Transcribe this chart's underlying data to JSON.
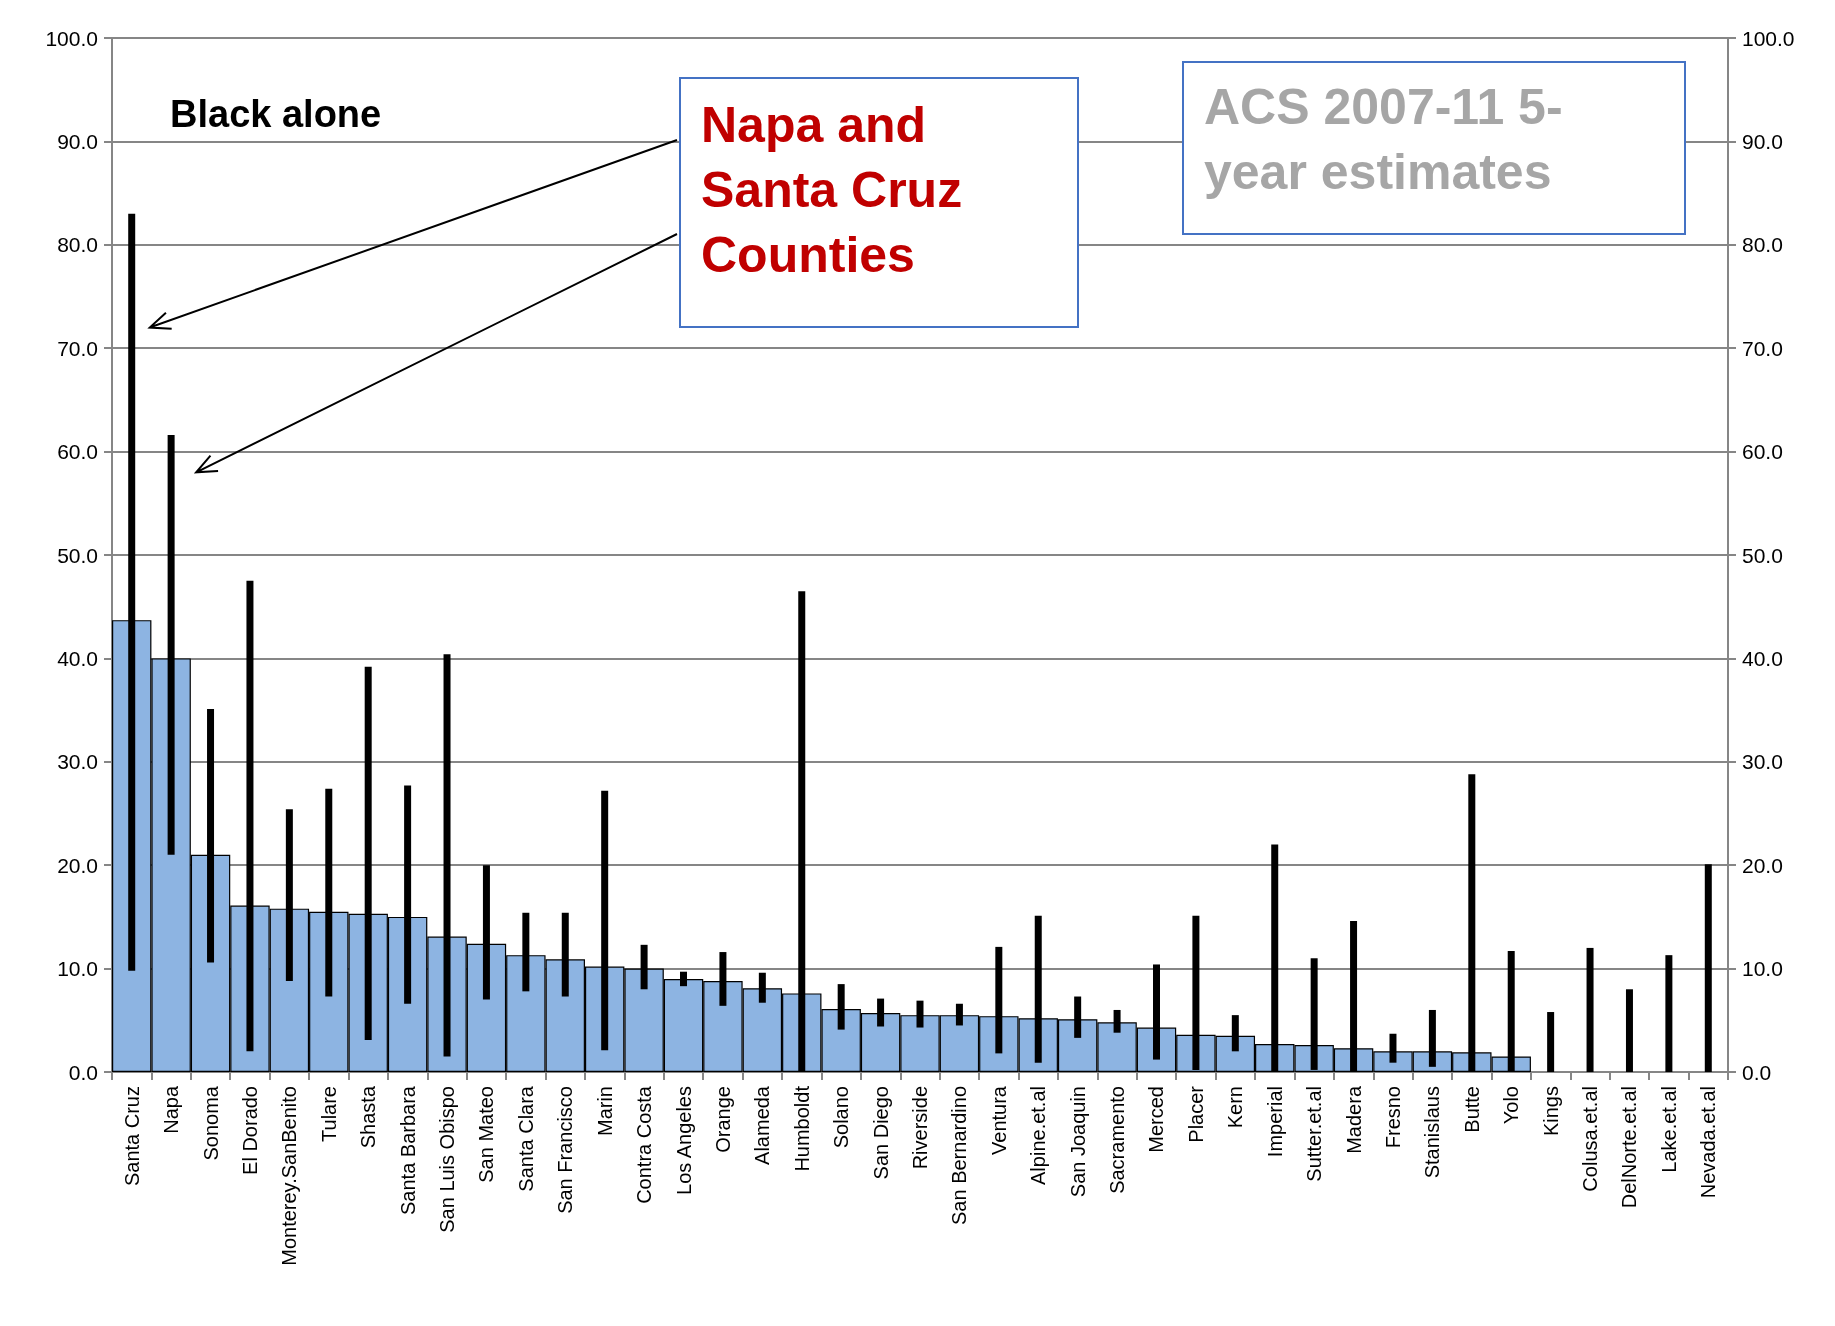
{
  "chart_data": {
    "type": "bar",
    "annotations": [
      "Black alone",
      "Napa and Santa Cruz Counties",
      "ACS 2007-11 5-year estimates"
    ],
    "categories": [
      "Santa Cruz",
      "Napa",
      "Sonoma",
      "El Dorado",
      "Monterey.SanBenito",
      "Tulare",
      "Shasta",
      "Santa Barbara",
      "San Luis Obispo",
      "San Mateo",
      "Santa Clara",
      "San Francisco",
      "Marin",
      "Contra Costa",
      "Los Angeles",
      "Orange",
      "Alameda",
      "Humboldt",
      "Solano",
      "San Diego",
      "Riverside",
      "San Bernardino",
      "Ventura",
      "Alpine.et.al",
      "San Joaquin",
      "Sacramento",
      "Merced",
      "Placer",
      "Kern",
      "Imperial",
      "Sutter.et.al",
      "Madera",
      "Fresno",
      "Stanislaus",
      "Butte",
      "Yolo",
      "Kings",
      "Colusa.et.al",
      "DelNorte.et.al",
      "Lake.et.al",
      "Nevada.et.al"
    ],
    "values": [
      43.7,
      40.0,
      21.0,
      16.1,
      15.8,
      15.5,
      15.3,
      15.0,
      13.1,
      12.4,
      11.3,
      10.9,
      10.2,
      10.0,
      9.0,
      8.8,
      8.1,
      7.6,
      6.1,
      5.7,
      5.5,
      5.5,
      5.4,
      5.2,
      5.1,
      4.8,
      4.3,
      3.6,
      3.5,
      2.7,
      2.6,
      2.3,
      2.0,
      2.0,
      1.9,
      1.5,
      0,
      0,
      0,
      0,
      0
    ],
    "errors": [
      [
        9.8,
        83.0
      ],
      [
        21.0,
        61.6
      ],
      [
        10.6,
        35.1
      ],
      [
        2.0,
        47.5
      ],
      [
        8.8,
        25.4
      ],
      [
        7.3,
        27.4
      ],
      [
        3.1,
        39.2
      ],
      [
        6.6,
        27.7
      ],
      [
        1.5,
        40.4
      ],
      [
        7.0,
        20.0
      ],
      [
        7.8,
        15.4
      ],
      [
        7.3,
        15.4
      ],
      [
        2.1,
        27.2
      ],
      [
        8.0,
        12.3
      ],
      [
        8.3,
        9.7
      ],
      [
        6.4,
        11.6
      ],
      [
        6.7,
        9.6
      ],
      [
        0,
        46.5
      ],
      [
        4.1,
        8.5
      ],
      [
        4.4,
        7.1
      ],
      [
        4.3,
        6.9
      ],
      [
        4.5,
        6.6
      ],
      [
        1.8,
        12.1
      ],
      [
        0.9,
        15.1
      ],
      [
        3.3,
        7.3
      ],
      [
        3.8,
        6.0
      ],
      [
        1.2,
        10.4
      ],
      [
        0.2,
        15.1
      ],
      [
        2.0,
        5.5
      ],
      [
        0,
        22.0
      ],
      [
        0.2,
        11.0
      ],
      [
        0,
        14.6
      ],
      [
        0.9,
        3.7
      ],
      [
        0.5,
        6.0
      ],
      [
        0,
        28.8
      ],
      [
        0,
        11.7
      ],
      [
        0,
        5.8
      ],
      [
        0,
        12.0
      ],
      [
        0,
        8.0
      ],
      [
        0,
        11.3
      ],
      [
        0,
        20.1
      ]
    ],
    "color": "#8db4e2",
    "ylim": [
      0,
      100
    ],
    "yticks": [
      {
        "value": 0,
        "label": "0.0"
      },
      {
        "value": 10,
        "label": "10.0"
      },
      {
        "value": 20,
        "label": "20.0"
      },
      {
        "value": 30,
        "label": "30.0"
      },
      {
        "value": 40,
        "label": "40.0"
      },
      {
        "value": 50,
        "label": "50.0"
      },
      {
        "value": 60,
        "label": "60.0"
      },
      {
        "value": 70,
        "label": "70.0"
      },
      {
        "value": 80,
        "label": "80.0"
      },
      {
        "value": 90,
        "label": "90.0"
      },
      {
        "value": 100,
        "label": "100.0"
      }
    ],
    "y2lim": [
      0,
      100
    ],
    "y2ticks": [
      {
        "value": 0,
        "label": "0.0"
      },
      {
        "value": 10,
        "label": "10.0"
      },
      {
        "value": 20,
        "label": "20.0"
      },
      {
        "value": 30,
        "label": "30.0"
      },
      {
        "value": 40,
        "label": "40.0"
      },
      {
        "value": 50,
        "label": "50.0"
      },
      {
        "value": 60,
        "label": "60.0"
      },
      {
        "value": 70,
        "label": "70.0"
      },
      {
        "value": 80,
        "label": "80.0"
      },
      {
        "value": 90,
        "label": "90.0"
      },
      {
        "value": 100,
        "label": "100.0"
      }
    ],
    "grid": "y"
  }
}
